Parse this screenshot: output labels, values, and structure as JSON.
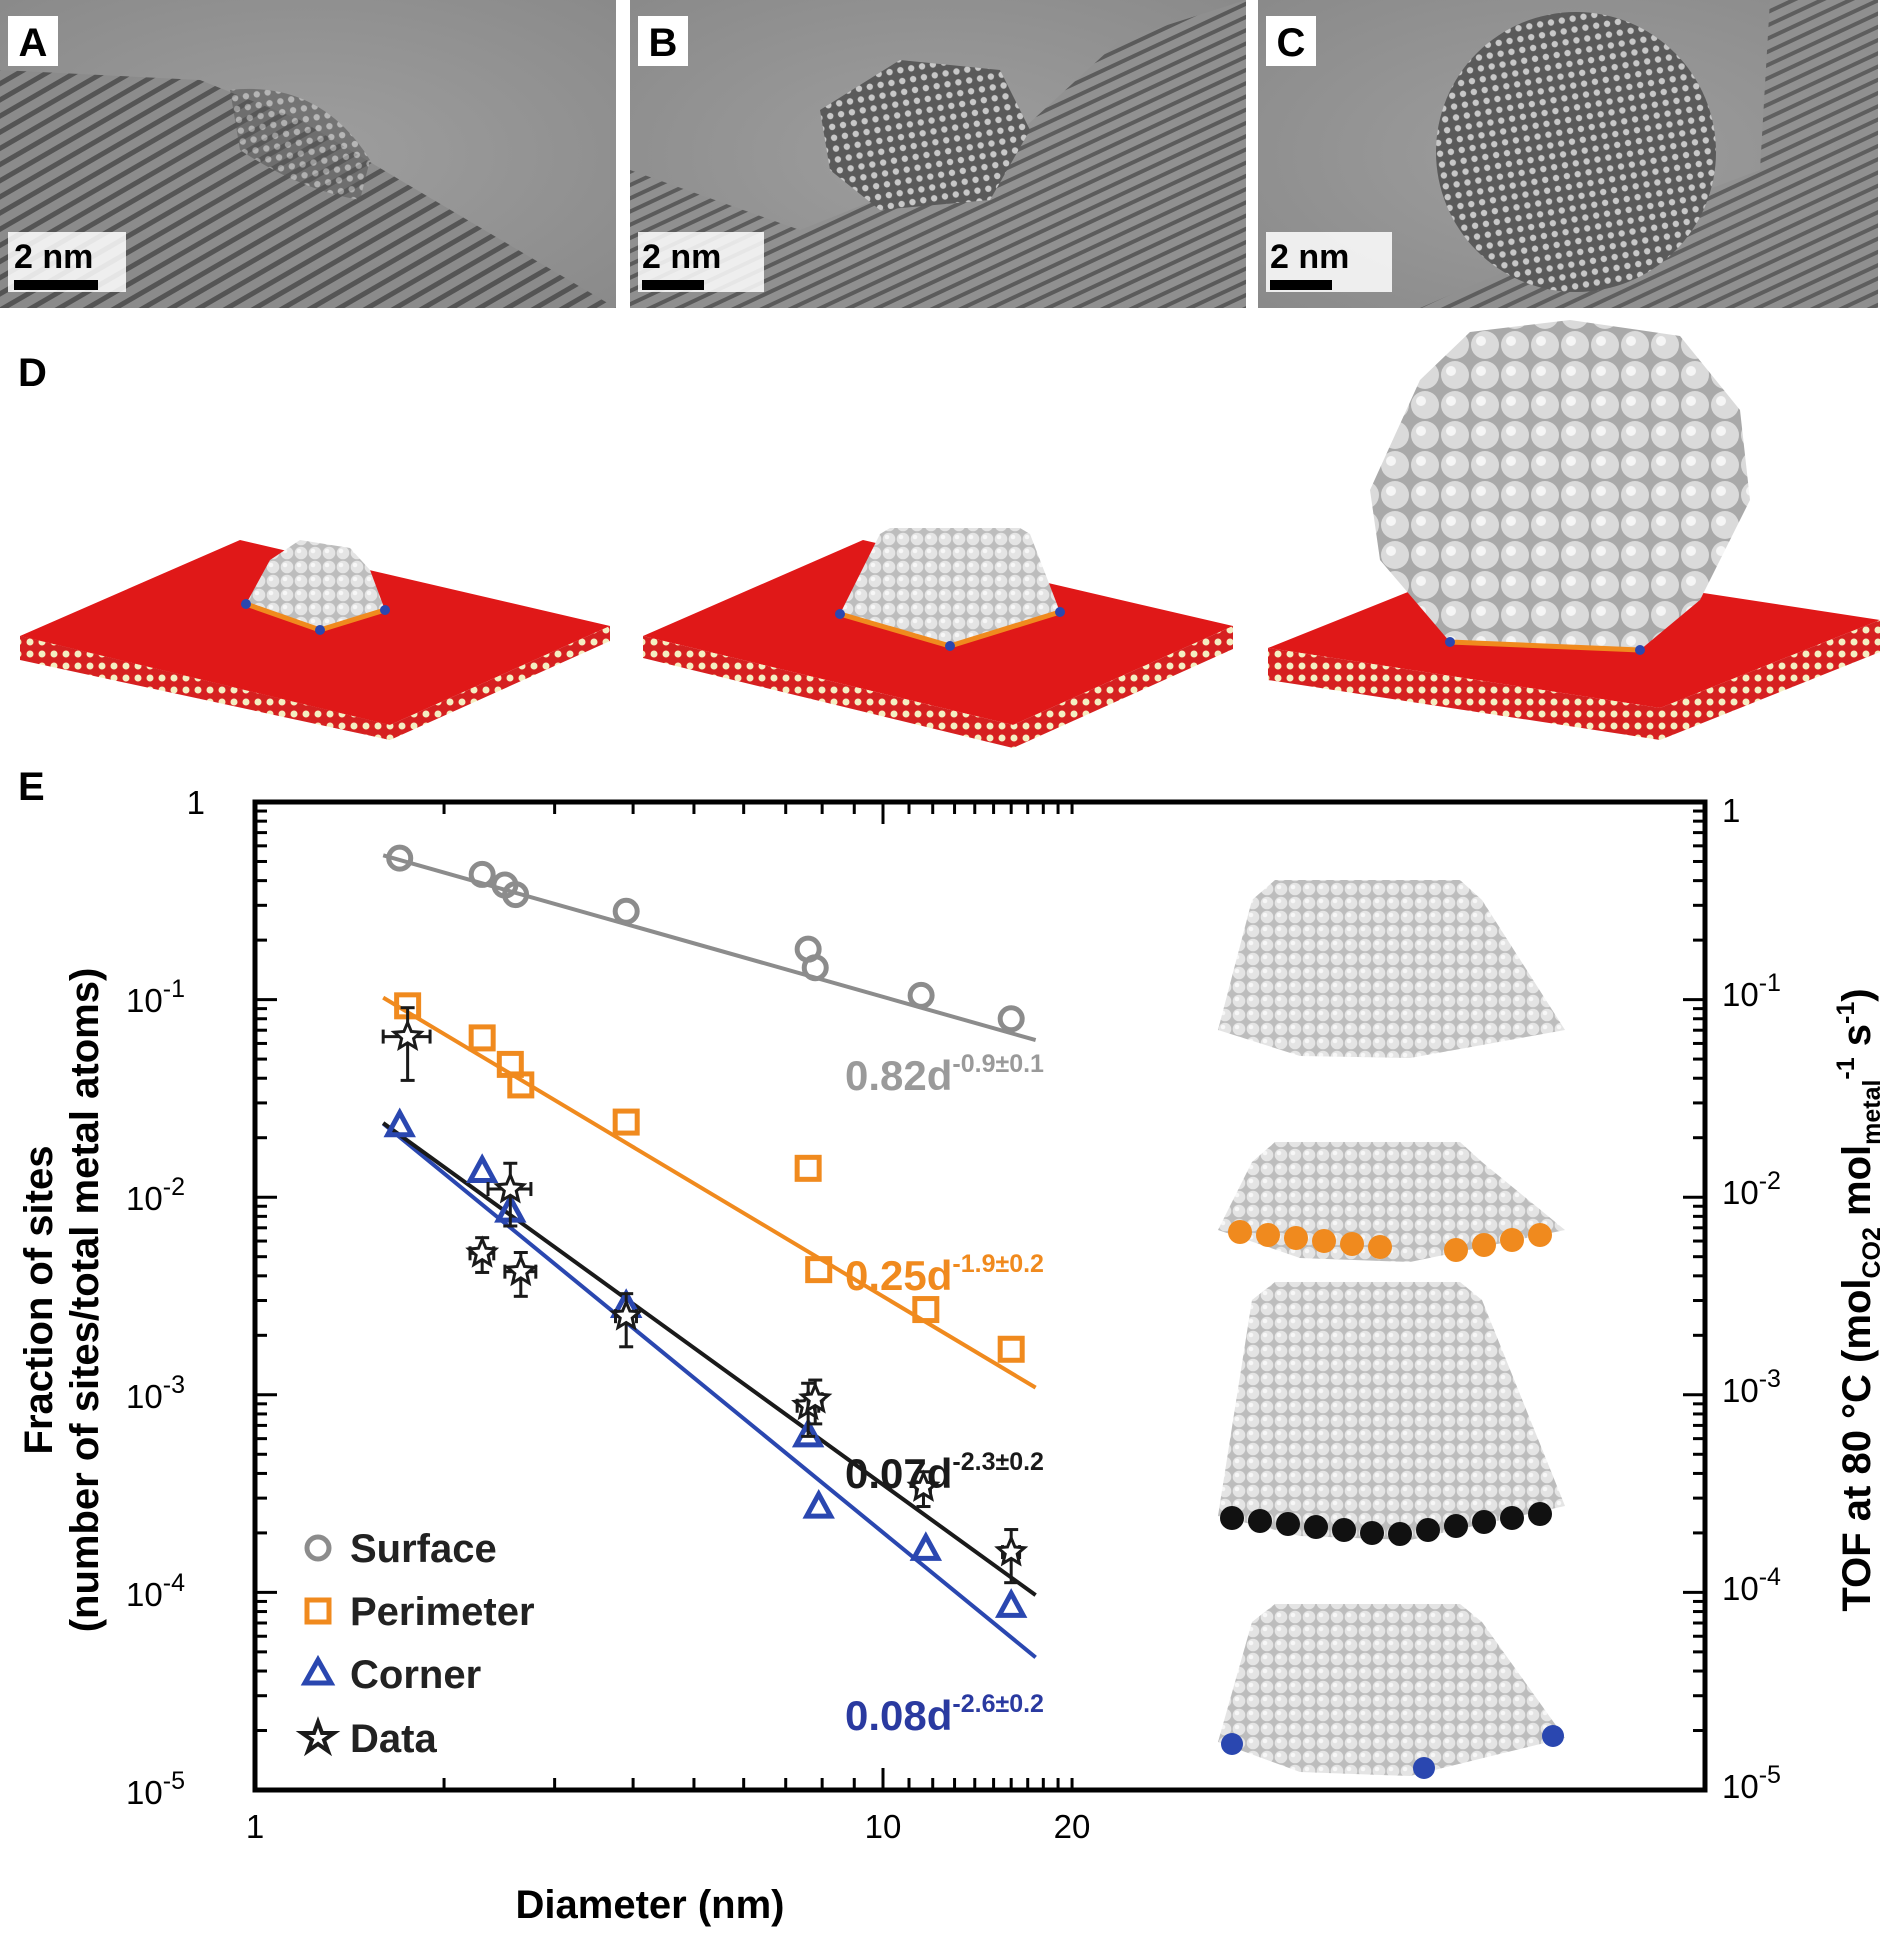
{
  "panels": {
    "A": {
      "letter": "A",
      "scale": "2 nm"
    },
    "B": {
      "letter": "B",
      "scale": "2 nm"
    },
    "C": {
      "letter": "C",
      "scale": "2 nm"
    },
    "D": {
      "letter": "D"
    },
    "E": {
      "letter": "E"
    }
  },
  "colors": {
    "surface": "#8c8c8c",
    "perimeter": "#f08a1e",
    "corner": "#2a47b0",
    "data": "#1a1a1a",
    "support": "#e01010",
    "sphere": "#d7d7d7"
  },
  "icons": [
    "circle-marker",
    "square-marker",
    "triangle-marker",
    "star-marker"
  ],
  "chart_data": {
    "type": "scatter",
    "xlabel": "Diameter (nm)",
    "ylabel_line1": "Fraction of sites",
    "ylabel_line2": "(number of sites/total metal atoms)",
    "y2label": "TOF at 80 °C (mol",
    "y2label_sub1": "CO2",
    "y2label_mid": " mol",
    "y2label_sub2": "metal",
    "y2label_sup1": "-1",
    "y2label_mid2": " s",
    "y2label_sup2": "-1",
    "y2label_end": ")",
    "x_scale": "log",
    "y_scale": "log",
    "xlim": [
      1,
      20
    ],
    "ylim": [
      1e-05,
      1
    ],
    "x_ticks": [
      {
        "value": 1,
        "label": "1"
      },
      {
        "value": 10,
        "label": "10"
      },
      {
        "value": 20,
        "label": "20"
      }
    ],
    "y_ticks": [
      {
        "value": 1,
        "base": "1",
        "exp": ""
      },
      {
        "value": 0.1,
        "base": "10",
        "exp": "-1"
      },
      {
        "value": 0.01,
        "base": "10",
        "exp": "-2"
      },
      {
        "value": 0.001,
        "base": "10",
        "exp": "-3"
      },
      {
        "value": 0.0001,
        "base": "10",
        "exp": "-4"
      },
      {
        "value": 1e-05,
        "base": "10",
        "exp": "-5"
      }
    ],
    "legend_placement": "bottom-left",
    "series": [
      {
        "name": "Surface",
        "marker": "circle",
        "color": "#8c8c8c",
        "x": [
          1.7,
          2.3,
          2.5,
          2.6,
          3.9,
          7.6,
          7.8,
          11.5,
          16
        ],
        "y": [
          0.52,
          0.43,
          0.38,
          0.34,
          0.28,
          0.18,
          0.145,
          0.105,
          0.08
        ],
        "fit": {
          "a": 0.82,
          "b": -0.9,
          "label_base": "0.82d",
          "label_exp": "-0.9±0.1",
          "x_range": [
            1.6,
            17.5
          ]
        }
      },
      {
        "name": "Perimeter",
        "marker": "square",
        "color": "#f08a1e",
        "x": [
          1.75,
          2.3,
          2.55,
          2.65,
          3.9,
          7.6,
          7.9,
          11.7,
          16
        ],
        "y": [
          0.093,
          0.064,
          0.047,
          0.037,
          0.024,
          0.014,
          0.0043,
          0.0027,
          0.0017
        ],
        "fit": {
          "a": 0.25,
          "b": -1.9,
          "label_base": "0.25d",
          "label_exp": "-1.9±0.2",
          "x_range": [
            1.6,
            17.5
          ]
        }
      },
      {
        "name": "Corner",
        "marker": "triangle",
        "color": "#2a47b0",
        "x": [
          1.7,
          2.3,
          2.55,
          3.9,
          7.6,
          7.9,
          11.7,
          16
        ],
        "y": [
          0.023,
          0.0135,
          0.0085,
          0.0028,
          0.00062,
          0.00027,
          0.000165,
          8.5e-05
        ],
        "fit": {
          "a": 0.08,
          "b": -2.6,
          "label_base": "0.08d",
          "label_exp": "-2.6±0.2",
          "x_range": [
            1.6,
            17.5
          ]
        }
      },
      {
        "name": "Data",
        "marker": "star",
        "color": "#1a1a1a",
        "x": [
          1.75,
          2.55,
          2.3,
          2.65,
          3.9,
          7.6,
          7.8,
          11.6,
          16
        ],
        "y": [
          0.065,
          0.011,
          0.0052,
          0.0042,
          0.0025,
          0.00088,
          0.00095,
          0.00034,
          0.00016
        ],
        "x_err": [
          0.15,
          0.2,
          0.1,
          0.15,
          0.15,
          0.3,
          0.2,
          0.3,
          0.5
        ],
        "y_err_frac": [
          0.4,
          0.35,
          0.2,
          0.25,
          0.3,
          0.3,
          0.25,
          0.2,
          0.3
        ],
        "fit": {
          "a": 0.07,
          "b": -2.3,
          "label_base": "0.07d",
          "label_exp": "-2.3±0.2",
          "x_range": [
            1.6,
            17.5
          ]
        }
      }
    ]
  }
}
